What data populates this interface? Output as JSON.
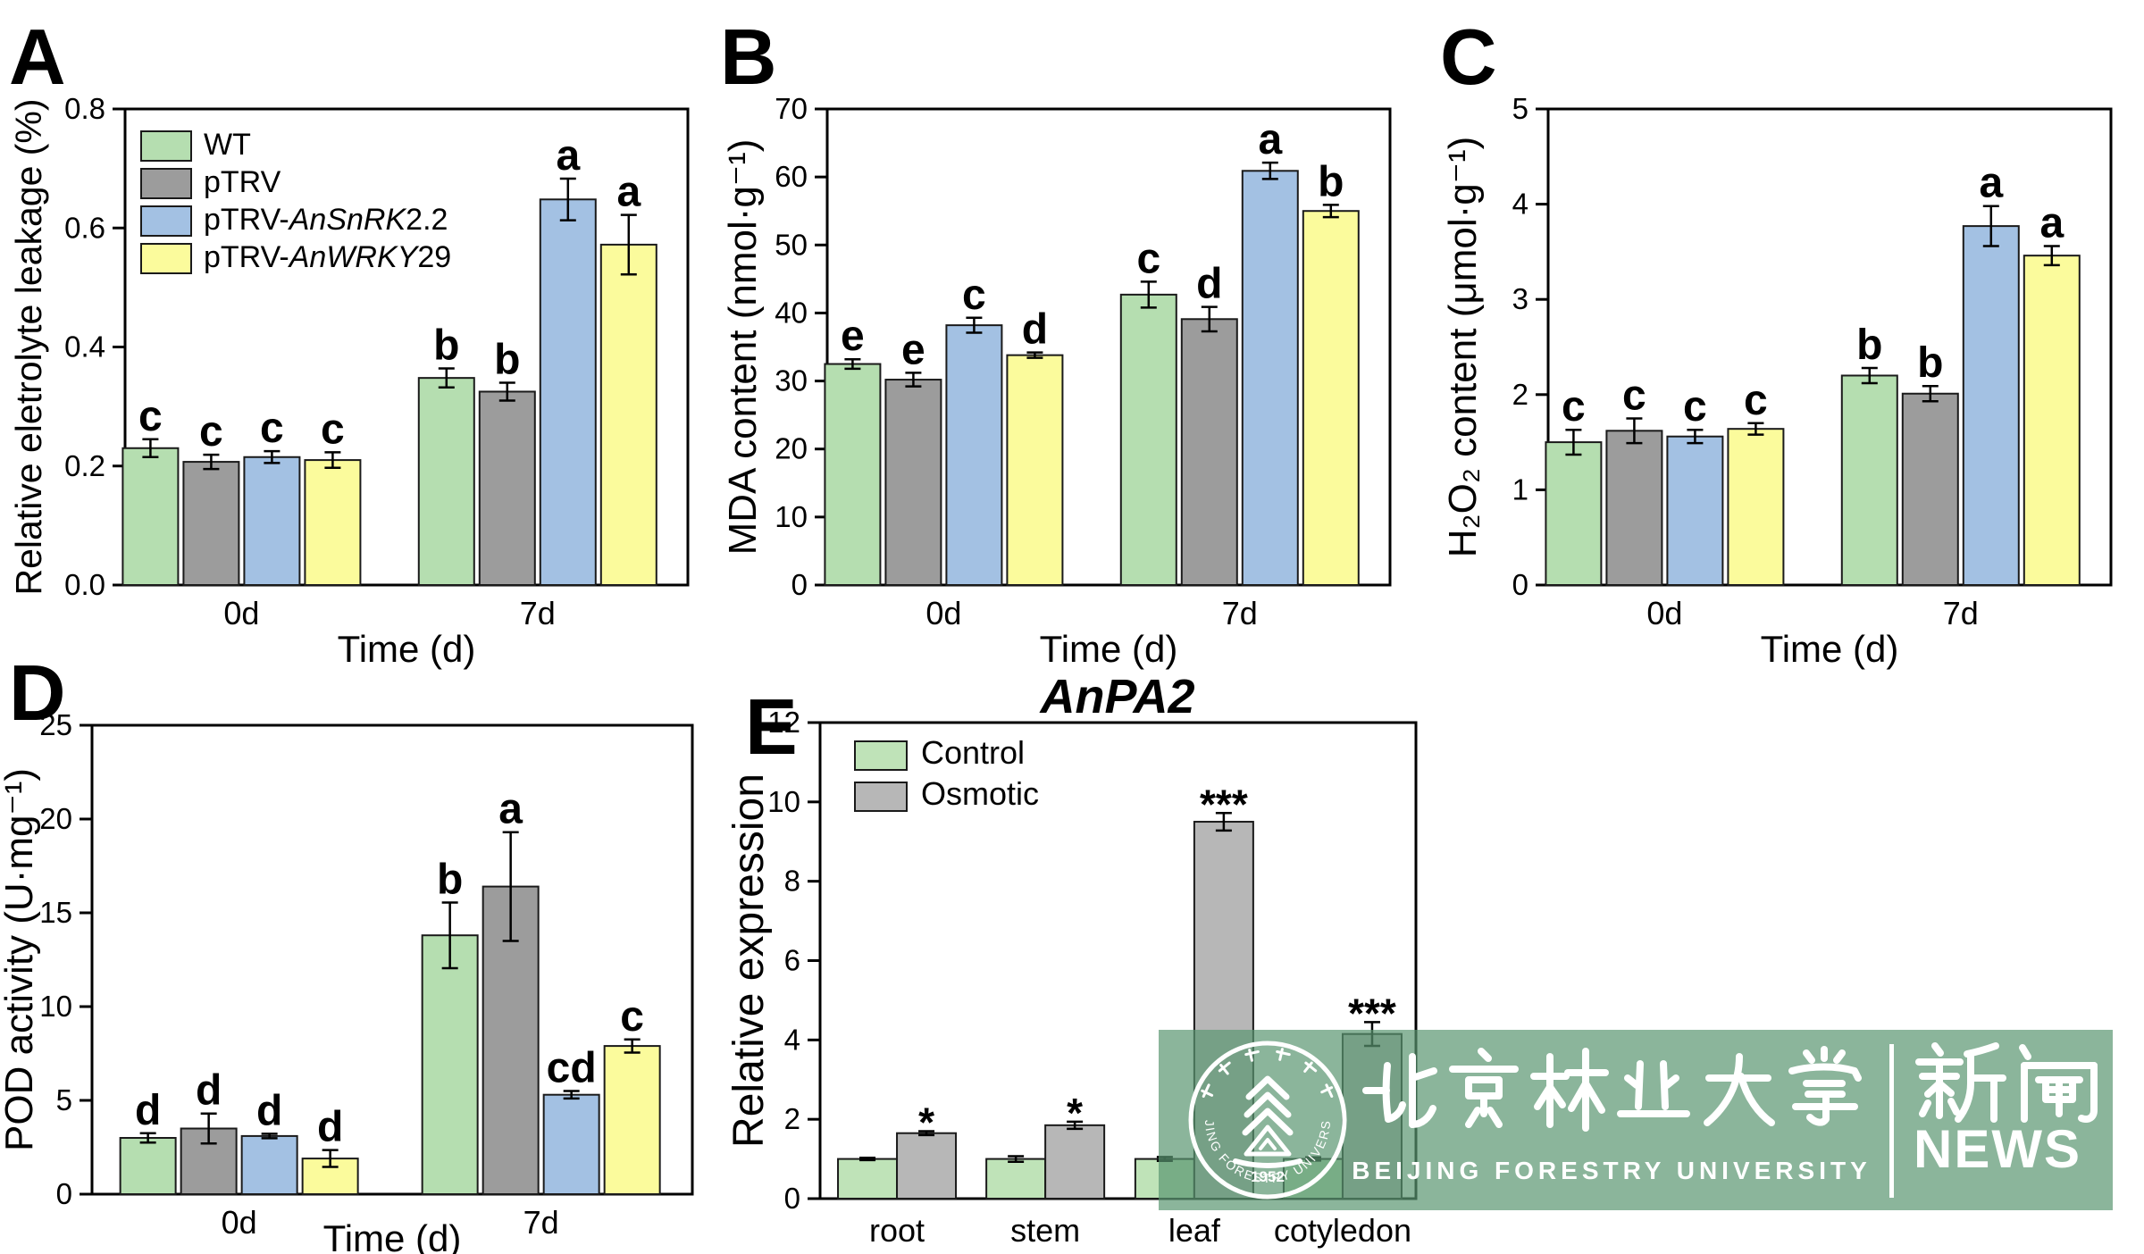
{
  "figure": {
    "background_color": "#ffffff"
  },
  "chart_data": [
    {
      "panel_label": "A",
      "type": "bar",
      "title_parts": [],
      "ylabel": "Relative eletrolyte leakage (%)",
      "xlabel": "Time (d)",
      "categories": [
        "0d",
        "7d"
      ],
      "ylim": [
        0,
        0.8
      ],
      "yticks": [
        "0.0",
        "0.2",
        "0.4",
        "0.6",
        "0.8"
      ],
      "legend_position": "top-left",
      "grid": false,
      "series": [
        {
          "name_parts": [
            {
              "t": "WT"
            }
          ],
          "color": "#b5deb0",
          "values": [
            0.23,
            0.348
          ],
          "errors": [
            0.015,
            0.016
          ],
          "letters": [
            "c",
            "b"
          ]
        },
        {
          "name_parts": [
            {
              "t": "pTRV"
            }
          ],
          "color": "#9c9c9c",
          "values": [
            0.207,
            0.325
          ],
          "errors": [
            0.012,
            0.015
          ],
          "letters": [
            "c",
            "b"
          ]
        },
        {
          "name_parts": [
            {
              "t": "pTRV-"
            },
            {
              "t": "AnSnRK",
              "i": true
            },
            {
              "t": "2.2"
            }
          ],
          "color": "#a3c1e3",
          "values": [
            0.215,
            0.648
          ],
          "errors": [
            0.01,
            0.035
          ],
          "letters": [
            "c",
            "a"
          ]
        },
        {
          "name_parts": [
            {
              "t": "pTRV-"
            },
            {
              "t": "AnWRKY",
              "i": true
            },
            {
              "t": "29"
            }
          ],
          "color": "#fbfb9c",
          "values": [
            0.21,
            0.572
          ],
          "errors": [
            0.013,
            0.05
          ],
          "letters": [
            "c",
            "a"
          ]
        }
      ]
    },
    {
      "panel_label": "B",
      "type": "bar",
      "title_parts": [],
      "ylabel": "MDA content (nmol·g⁻¹)",
      "xlabel": "Time (d)",
      "categories": [
        "0d",
        "7d"
      ],
      "ylim": [
        0,
        70
      ],
      "yticks": [
        "0",
        "10",
        "20",
        "30",
        "40",
        "50",
        "60",
        "70"
      ],
      "legend_position": "none",
      "grid": false,
      "series": [
        {
          "name_parts": [
            {
              "t": "WT"
            }
          ],
          "color": "#b5deb0",
          "values": [
            32.5,
            42.7
          ],
          "errors": [
            0.7,
            1.9
          ],
          "letters": [
            "e",
            "c"
          ]
        },
        {
          "name_parts": [
            {
              "t": "pTRV"
            }
          ],
          "color": "#9c9c9c",
          "values": [
            30.2,
            39.1
          ],
          "errors": [
            1.0,
            1.8
          ],
          "letters": [
            "e",
            "d"
          ]
        },
        {
          "name_parts": [
            {
              "t": "pTRV-"
            },
            {
              "t": "AnSnRK",
              "i": true
            },
            {
              "t": "2.2"
            }
          ],
          "color": "#a3c1e3",
          "values": [
            38.2,
            60.9
          ],
          "errors": [
            1.1,
            1.2
          ],
          "letters": [
            "c",
            "a"
          ]
        },
        {
          "name_parts": [
            {
              "t": "pTRV-"
            },
            {
              "t": "AnWRKY",
              "i": true
            },
            {
              "t": "29"
            }
          ],
          "color": "#fbfb9c",
          "values": [
            33.8,
            55.0
          ],
          "errors": [
            0.4,
            0.9
          ],
          "letters": [
            "d",
            "b"
          ]
        }
      ]
    },
    {
      "panel_label": "C",
      "type": "bar",
      "title_parts": [],
      "ylabel": "H₂O₂ content (μmol·g⁻¹)",
      "xlabel": "Time (d)",
      "categories": [
        "0d",
        "7d"
      ],
      "ylim": [
        0,
        5
      ],
      "yticks": [
        "0",
        "1",
        "2",
        "3",
        "4",
        "5"
      ],
      "legend_position": "none",
      "grid": false,
      "series": [
        {
          "name_parts": [
            {
              "t": "WT"
            }
          ],
          "color": "#b5deb0",
          "values": [
            1.5,
            2.2
          ],
          "errors": [
            0.13,
            0.08
          ],
          "letters": [
            "c",
            "b"
          ]
        },
        {
          "name_parts": [
            {
              "t": "pTRV"
            }
          ],
          "color": "#9c9c9c",
          "values": [
            1.62,
            2.01
          ],
          "errors": [
            0.13,
            0.08
          ],
          "letters": [
            "c",
            "b"
          ]
        },
        {
          "name_parts": [
            {
              "t": "pTRV-"
            },
            {
              "t": "AnSnRK",
              "i": true
            },
            {
              "t": "2.2"
            }
          ],
          "color": "#a3c1e3",
          "values": [
            1.56,
            3.77
          ],
          "errors": [
            0.07,
            0.21
          ],
          "letters": [
            "c",
            "a"
          ]
        },
        {
          "name_parts": [
            {
              "t": "pTRV-"
            },
            {
              "t": "AnWRKY",
              "i": true
            },
            {
              "t": "29"
            }
          ],
          "color": "#fbfb9c",
          "values": [
            1.64,
            3.46
          ],
          "errors": [
            0.06,
            0.1
          ],
          "letters": [
            "c",
            "a"
          ]
        }
      ]
    },
    {
      "panel_label": "D",
      "type": "bar",
      "title_parts": [],
      "ylabel": "POD activity (U·mg⁻¹)",
      "xlabel": "Time (d)",
      "categories": [
        "0d",
        "7d"
      ],
      "ylim": [
        0,
        25
      ],
      "yticks": [
        "0",
        "5",
        "10",
        "15",
        "20",
        "25"
      ],
      "legend_position": "none",
      "grid": false,
      "series": [
        {
          "name_parts": [
            {
              "t": "WT"
            }
          ],
          "color": "#b5deb0",
          "values": [
            3.0,
            13.8
          ],
          "errors": [
            0.25,
            1.75
          ],
          "letters": [
            "d",
            "b"
          ]
        },
        {
          "name_parts": [
            {
              "t": "pTRV"
            }
          ],
          "color": "#9c9c9c",
          "values": [
            3.5,
            16.4
          ],
          "errors": [
            0.8,
            2.9
          ],
          "letters": [
            "d",
            "a"
          ]
        },
        {
          "name_parts": [
            {
              "t": "pTRV-"
            },
            {
              "t": "AnSnRK",
              "i": true
            },
            {
              "t": "2.2"
            }
          ],
          "color": "#a3c1e3",
          "values": [
            3.1,
            5.3
          ],
          "errors": [
            0.12,
            0.2
          ],
          "letters": [
            "d",
            "cd"
          ]
        },
        {
          "name_parts": [
            {
              "t": "pTRV-"
            },
            {
              "t": "AnWRKY",
              "i": true
            },
            {
              "t": "29"
            }
          ],
          "color": "#fbfb9c",
          "values": [
            1.9,
            7.9
          ],
          "errors": [
            0.45,
            0.35
          ],
          "letters": [
            "d",
            "c"
          ]
        }
      ]
    },
    {
      "panel_label": "E",
      "type": "bar",
      "title_parts": [
        {
          "t": "AnPA2",
          "i": true
        }
      ],
      "ylabel": "Relative expression",
      "xlabel": "",
      "categories": [
        "root",
        "stem",
        "leaf",
        "cotyledon"
      ],
      "ylim": [
        0,
        12
      ],
      "yticks": [
        "0",
        "2",
        "4",
        "6",
        "8",
        "10",
        "12"
      ],
      "legend_position": "top-left",
      "grid": false,
      "series": [
        {
          "name_parts": [
            {
              "t": "Control"
            }
          ],
          "color": "#bfe3b8",
          "values": [
            1.0,
            1.0,
            1.0,
            1.0
          ],
          "errors": [
            0.03,
            0.07,
            0.05,
            0.04
          ],
          "sig": [
            "",
            "",
            "",
            ""
          ]
        },
        {
          "name_parts": [
            {
              "t": "Osmotic"
            }
          ],
          "color": "#b7b7b7",
          "values": [
            1.65,
            1.85,
            9.5,
            4.15
          ],
          "errors": [
            0.05,
            0.09,
            0.22,
            0.3
          ],
          "sig": [
            "*",
            "*",
            "***",
            "***"
          ]
        }
      ]
    }
  ],
  "banner": {
    "overlay_color": "#5A9670",
    "overlay_opacity": 0.7,
    "university_cn": "北京林业大学",
    "university_en": "BEIJING FORESTRY UNIVERSITY",
    "news_cn": "新闻",
    "news_en": "NEWS",
    "seal_year": "1952",
    "seal_ring_text": "BEIJING FORESTRY UNIVERSITY"
  }
}
